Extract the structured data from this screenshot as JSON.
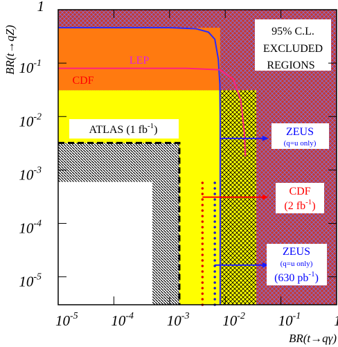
{
  "chart_data": {
    "type": "exclusion",
    "x_label": "BR(t→qγ)",
    "y_label": "BR(t→qZ)",
    "x_log": true,
    "y_log": true,
    "xlim": [
      1e-05,
      1
    ],
    "ylim": [
      3e-06,
      1
    ],
    "xticks": [
      {
        "value": 1e-05,
        "label": "10",
        "exponent": "-5"
      },
      {
        "value": 0.0001,
        "label": "10",
        "exponent": "-4"
      },
      {
        "value": 0.001,
        "label": "10",
        "exponent": "-3"
      },
      {
        "value": 0.01,
        "label": "10",
        "exponent": "-2"
      },
      {
        "value": 0.1,
        "label": "10",
        "exponent": "-1"
      },
      1
    ],
    "yticks": [
      {
        "value": 1e-05,
        "label": "10",
        "exponent": "-5"
      },
      {
        "value": 0.0001,
        "label": "10",
        "exponent": "-4"
      },
      {
        "value": 0.001,
        "label": "10",
        "exponent": "-3"
      },
      {
        "value": 0.01,
        "label": "10",
        "exponent": "-2"
      },
      {
        "value": 0.1,
        "label": "10",
        "exponent": "-1"
      },
      1
    ],
    "regions": [
      {
        "x": [
          1e-05,
          1
        ],
        "y": [
          3e-06,
          1
        ],
        "color": "#c8382e",
        "hatch": "cross",
        "hatch_color": "#8070d8"
      },
      {
        "x": [
          1e-05,
          0.0081
        ],
        "y": [
          0.031,
          0.46
        ],
        "color": "#ff7a10"
      },
      {
        "x": [
          1e-05,
          0.036
        ],
        "y": [
          3e-06,
          0.031
        ],
        "color": "#ffff00"
      },
      {
        "x": [
          0.0081,
          0.036
        ],
        "y": [
          3e-06,
          0.031
        ],
        "color": "#ffff00",
        "hatch": "cross",
        "hatch_color": "#000000"
      },
      {
        "x": [
          1e-05,
          0.0015
        ],
        "y": [
          3e-06,
          0.0032
        ],
        "color": "#ffffff",
        "hatch": "diagonal",
        "hatch_color": "#000000",
        "outline": "dashed"
      },
      {
        "x": [
          1e-05,
          0.00049
        ],
        "y": [
          3e-06,
          0.0006
        ],
        "color": "#ffffff"
      }
    ],
    "curves": [
      {
        "color": "#2a2aff",
        "x": [
          1e-05,
          0.001,
          0.003,
          0.005,
          0.0065,
          0.0075,
          0.008,
          0.0081,
          0.0081
        ],
        "y": [
          0.46,
          0.46,
          0.44,
          0.38,
          0.28,
          0.12,
          0.04,
          0.01,
          3e-06
        ]
      },
      {
        "color": "#ff2080",
        "x": [
          1e-05,
          0.002,
          0.008,
          0.014,
          0.019,
          0.022,
          0.023
        ],
        "y": [
          0.08,
          0.08,
          0.075,
          0.05,
          0.02,
          0.005,
          0.0018
        ]
      }
    ],
    "dotted": [
      {
        "color": "#e00000",
        "x": 0.0039,
        "y": [
          3e-06,
          0.0006
        ]
      },
      {
        "color": "#1a1acc",
        "x": 0.0065,
        "y": [
          3e-06,
          0.0006
        ]
      }
    ],
    "arrows": [
      {
        "color": "#1a1aff",
        "x": [
          0.0081,
          0.06
        ],
        "y": 0.0039
      },
      {
        "color": "#ff0000",
        "x": [
          0.0039,
          0.06
        ],
        "y": 0.00031
      },
      {
        "color": "#1a1aff",
        "x": [
          0.0065,
          0.06
        ],
        "y": 1.66e-05
      }
    ],
    "annotations": [
      {
        "text": "95% C.L."
      },
      {
        "text": "EXCLUDED"
      },
      {
        "text": "REGIONS"
      },
      {
        "text": "LEP",
        "color": "#e020e0"
      },
      {
        "text": "CDF",
        "color": "#ff0000"
      },
      {
        "text": "ATLAS (1 fb",
        "sup": "-1",
        "tail": ")"
      },
      {
        "text": "ZEUS",
        "color": "#0000ff"
      },
      {
        "text": "(q=u only)",
        "color": "#0000ff"
      },
      {
        "text": "CDF",
        "color": "#ff0000"
      },
      {
        "text": "(2 fb",
        "sup": "-1",
        "tail": ")",
        "color": "#ff0000"
      },
      {
        "text": "ZEUS",
        "color": "#0000ff"
      },
      {
        "text": "(q=u only)",
        "color": "#0000ff"
      },
      {
        "text": "(630 pb",
        "sup": "-1",
        "tail": ")",
        "color": "#0000ff"
      }
    ]
  }
}
